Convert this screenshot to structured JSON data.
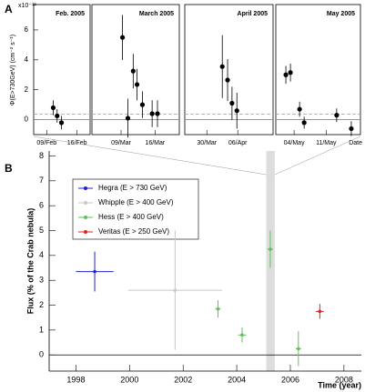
{
  "chart_data": [
    {
      "type": "panels",
      "panel_label": "A",
      "ylabel": "Φ(E>730GeV) (cm⁻² s⁻¹)",
      "y_exponent_label": "x10⁻¹²",
      "xlabel": "Date",
      "ylim": [
        -1,
        7.7
      ],
      "yticks": [
        0,
        2,
        4,
        6
      ],
      "reference_line": 0.37,
      "reference_color": "#f08080",
      "color": "#000000",
      "panels": [
        {
          "title": "Feb. 2005",
          "xlim": [
            37,
            50
          ],
          "xticks": [
            {
              "value": 40,
              "label": "09/Feb"
            },
            {
              "value": 47,
              "label": "16/Feb"
            }
          ],
          "x": [
            41.5,
            42.4,
            43.4
          ],
          "values": [
            0.8,
            0.25,
            -0.2
          ],
          "yerr": [
            0.5,
            0.45,
            0.45
          ]
        },
        {
          "title": "March 2005",
          "xlim": [
            62,
            80
          ],
          "xticks": [
            {
              "value": 68,
              "label": "09/Mar"
            },
            {
              "value": 75,
              "label": "16/Mar"
            }
          ],
          "x": [
            68.3,
            69.4,
            70.5,
            71.3,
            72.4,
            74.4,
            75.5
          ],
          "values": [
            5.5,
            0.1,
            3.25,
            2.35,
            1.0,
            0.4,
            0.4
          ],
          "yerr": [
            1.5,
            1.3,
            1.15,
            1.05,
            0.9,
            0.9,
            0.9
          ]
        },
        {
          "title": "April 2005",
          "xlim": [
            84,
            104
          ],
          "xticks": [
            {
              "value": 89,
              "label": "30/Mar"
            },
            {
              "value": 96,
              "label": "06/Apr"
            }
          ],
          "x": [
            92.5,
            93.7,
            94.7,
            95.8
          ],
          "values": [
            3.55,
            2.65,
            1.1,
            0.6
          ],
          "yerr": [
            2.1,
            1.4,
            1.1,
            1.2
          ]
        },
        {
          "title": "May 2005",
          "xlim": [
            120,
            138.5
          ],
          "xticks": [
            {
              "value": 124,
              "label": "04/May"
            },
            {
              "value": 131,
              "label": "11/May"
            }
          ],
          "x": [
            122.2,
            123.2,
            125.2,
            126.2,
            133.3,
            136.5
          ],
          "values": [
            3.0,
            3.15,
            0.7,
            -0.2,
            0.3,
            -0.6
          ],
          "yerr": [
            0.6,
            0.6,
            0.5,
            0.4,
            0.45,
            0.5
          ]
        }
      ]
    },
    {
      "type": "scatter",
      "panel_label": "B",
      "ylabel": "Flux (% of the Crab nebula)",
      "xlabel": "Time (year)",
      "xlim": [
        1997,
        2008.65
      ],
      "xticks": [
        1998,
        2000,
        2002,
        2004,
        2006,
        2008
      ],
      "ylim": [
        -0.65,
        8.2
      ],
      "yticks": [
        0,
        1,
        2,
        3,
        4,
        5,
        6,
        7,
        8
      ],
      "highlight_x": [
        2005.1,
        2005.42
      ],
      "highlight_color": "#dddddd",
      "series": [
        {
          "name": "Hegra (E > 730 GeV)",
          "color": "#2020d0",
          "x": [
            1998.7
          ],
          "values": [
            3.35
          ],
          "xerr": [
            0.7
          ],
          "yerr": [
            0.8
          ]
        },
        {
          "name": "Whipple (E > 400 GeV)",
          "color": "#c8c8c8",
          "x": [
            2001.7
          ],
          "values": [
            2.6
          ],
          "xerr": [
            1.75
          ],
          "yerr": [
            2.4
          ]
        },
        {
          "name": "Hess (E > 400 GeV)",
          "color": "#60c060",
          "x": [
            2003.3,
            2004.2,
            2005.25,
            2006.3
          ],
          "values": [
            1.85,
            0.8,
            4.25,
            0.25
          ],
          "xerr": [
            0.1,
            0.15,
            0.1,
            0.1
          ],
          "yerr": [
            0.35,
            0.3,
            0.75,
            0.7
          ]
        },
        {
          "name": "Veritas (E > 250 GeV)",
          "color": "#e02020",
          "x": [
            2007.1
          ],
          "values": [
            1.75
          ],
          "xerr": [
            0.15
          ],
          "yerr": [
            0.3
          ]
        }
      ]
    }
  ]
}
